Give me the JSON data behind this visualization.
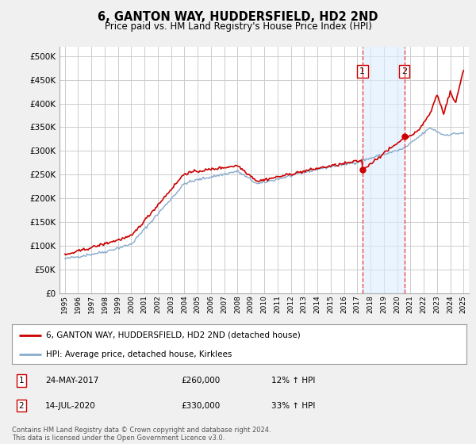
{
  "title": "6, GANTON WAY, HUDDERSFIELD, HD2 2ND",
  "subtitle": "Price paid vs. HM Land Registry's House Price Index (HPI)",
  "ytick_vals": [
    0,
    50000,
    100000,
    150000,
    200000,
    250000,
    300000,
    350000,
    400000,
    450000,
    500000
  ],
  "ylim": [
    0,
    520000
  ],
  "xlim_start": 1994.6,
  "xlim_end": 2025.4,
  "transaction1": {
    "date": "24-MAY-2017",
    "price": 260000,
    "label": "1",
    "year": 2017.39
  },
  "transaction2": {
    "date": "14-JUL-2020",
    "price": 330000,
    "label": "2",
    "year": 2020.54
  },
  "legend_line1": "6, GANTON WAY, HUDDERSFIELD, HD2 2ND (detached house)",
  "legend_line2": "HPI: Average price, detached house, Kirklees",
  "table_row1": [
    "1",
    "24-MAY-2017",
    "£260,000",
    "12% ↑ HPI"
  ],
  "table_row2": [
    "2",
    "14-JUL-2020",
    "£330,000",
    "33% ↑ HPI"
  ],
  "footer": "Contains HM Land Registry data © Crown copyright and database right 2024.\nThis data is licensed under the Open Government Licence v3.0.",
  "red_color": "#cc0000",
  "blue_color": "#88aacc",
  "bg_color": "#f0f0f0",
  "plot_bg": "#ffffff",
  "grid_color": "#cccccc",
  "dashed_color": "#ee3333"
}
